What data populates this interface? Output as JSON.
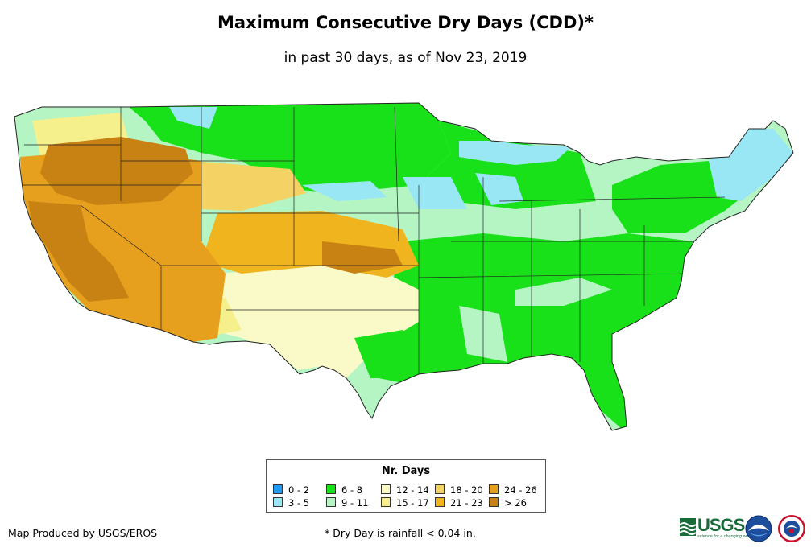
{
  "title": "Maximum Consecutive Dry Days (CDD)*",
  "subtitle": "in past 30 days, as of Nov 23, 2019",
  "legend": {
    "title": "Nr. Days",
    "items": [
      {
        "label": "0 - 2",
        "color": "#1e9bf0"
      },
      {
        "label": "3 - 5",
        "color": "#99e6f5"
      },
      {
        "label": "6 - 8",
        "color": "#19e119"
      },
      {
        "label": "9 - 11",
        "color": "#b4f5c3"
      },
      {
        "label": "12 - 14",
        "color": "#fafac8"
      },
      {
        "label": "15 - 17",
        "color": "#f5f08c"
      },
      {
        "label": "18 - 20",
        "color": "#f5d264"
      },
      {
        "label": "21 - 23",
        "color": "#f0b41e"
      },
      {
        "label": "24 - 26",
        "color": "#e6a01e"
      },
      {
        "label": "> 26",
        "color": "#c88214"
      }
    ]
  },
  "credit": "Map Produced by USGS/EROS",
  "footnote": "* Dry Day is rainfall < 0.04 in.",
  "logos": {
    "usgs_text": "USGS",
    "usgs_tagline": "science for a changing world",
    "noaa_icon": "noaa-seal",
    "nws_icon": "nws-seal"
  }
}
